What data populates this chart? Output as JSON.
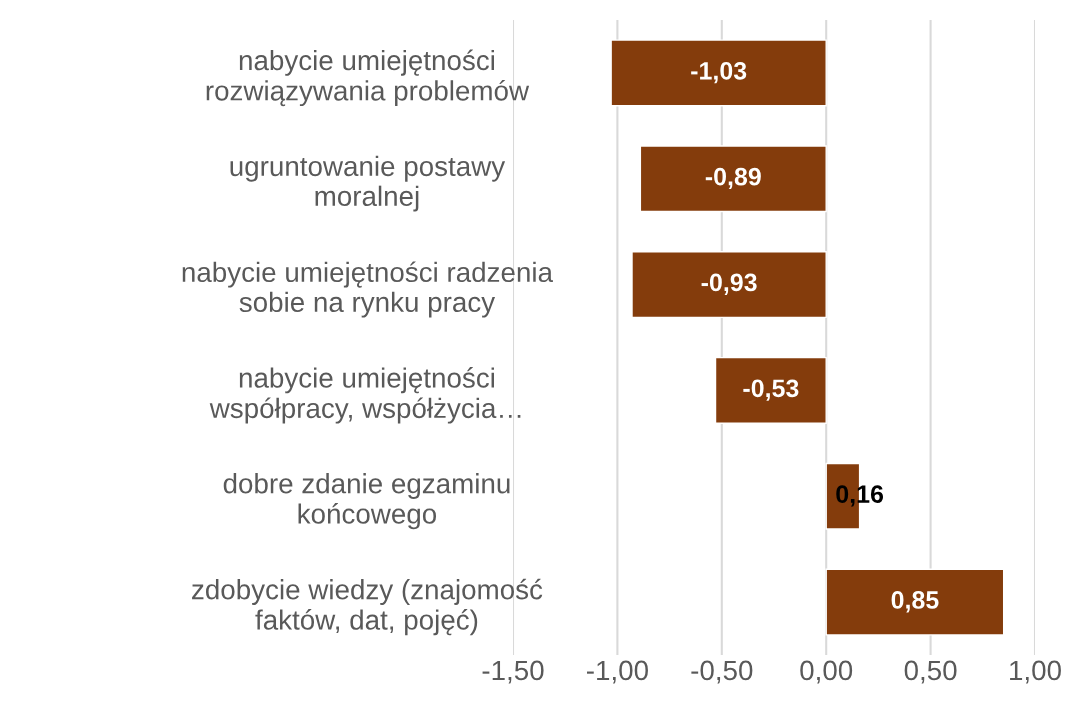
{
  "chart_data": {
    "type": "bar",
    "orientation": "horizontal",
    "categories": [
      "nabycie umiejętności\nrozwiązywania problemów",
      "ugruntowanie postawy\nmoralnej",
      "nabycie umiejętności radzenia\nsobie na rynku pracy",
      "nabycie umiejętności\nwspółpracy, współżycia…",
      "dobre zdanie egzaminu\nkońcowego",
      "zdobycie wiedzy (znajomość\nfaktów, dat, pojęć)"
    ],
    "values": [
      -1.03,
      -0.89,
      -0.93,
      -0.53,
      0.16,
      0.85
    ],
    "value_labels": [
      "-1,03",
      "-0,89",
      "-0,93",
      "-0,53",
      "0,16",
      "0,85"
    ],
    "color": "#843c0c",
    "xlim": [
      -1.5,
      1.0
    ],
    "xticks": [
      {
        "value": -1.5,
        "label": "-1,50"
      },
      {
        "value": -1.0,
        "label": "-1,00"
      },
      {
        "value": -0.5,
        "label": "-0,50"
      },
      {
        "value": 0,
        "label": "0,00"
      },
      {
        "value": 0.5,
        "label": "0,50"
      },
      {
        "value": 1.0,
        "label": "1,00"
      }
    ],
    "grid": "x"
  }
}
